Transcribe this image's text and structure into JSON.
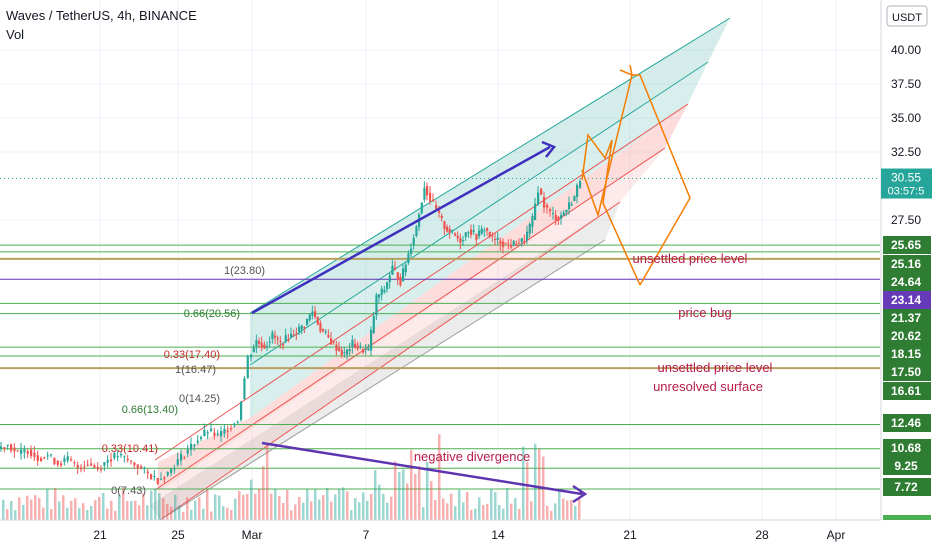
{
  "header": {
    "symbol_line": "Waves / TetherUS, 4h, BINANCE",
    "indicator": "Vol"
  },
  "price_axis": {
    "currency": "USDT",
    "ticks": [
      "40.00",
      "37.50",
      "35.00",
      "32.50",
      "27.50"
    ],
    "current_price": "30.55",
    "countdown": "03:57:5"
  },
  "level_labels": [
    {
      "text": "25.65",
      "color": "#2e7d32"
    },
    {
      "text": "25.16",
      "color": "#2e7d32"
    },
    {
      "text": "24.64",
      "color": "#2e7d32"
    },
    {
      "text": "23.14",
      "color": "#673ab7"
    },
    {
      "text": "21.37",
      "color": "#2e7d32"
    },
    {
      "text": "20.62",
      "color": "#2e7d32"
    },
    {
      "text": "18.15",
      "color": "#2e7d32"
    },
    {
      "text": "17.50",
      "color": "#2e7d32"
    },
    {
      "text": "16.61",
      "color": "#2e7d32"
    },
    {
      "text": "12.46",
      "color": "#2e7d32"
    },
    {
      "text": "10.68",
      "color": "#2e7d32"
    },
    {
      "text": "9.25",
      "color": "#2e7d32"
    },
    {
      "text": "7.72",
      "color": "#2e7d32"
    }
  ],
  "time_axis": [
    "21",
    "25",
    "Mar",
    "7",
    "14",
    "21",
    "28",
    "Apr"
  ],
  "fib_labels": [
    "1(23.80)",
    "0.66(20.56)",
    "0.33(17.40)",
    "1(16.47)",
    "0(14.25)",
    "0.66(13.40)",
    "0.33(10.41)",
    "0(7.43)"
  ],
  "annotations": [
    "unsettled price level",
    "price bug",
    "unsettled price level",
    "unresolved surface",
    "negative divergence"
  ],
  "colors": {
    "up": "#26a69a",
    "down": "#ef5350",
    "level": "#4caf50",
    "purple": "#5e35b1",
    "orange": "#f57c00",
    "annot": "#b71c4a"
  },
  "chart_data": {
    "type": "candlestick",
    "title": "Waves / TetherUS, 4h, BINANCE",
    "ylim": [
      5.5,
      42.5
    ],
    "y_ticks": [
      27.5,
      32.5,
      35.0,
      37.5,
      40.0
    ],
    "horizontal_levels": [
      25.65,
      25.16,
      24.64,
      23.14,
      21.37,
      20.62,
      18.15,
      17.5,
      16.61,
      12.46,
      10.68,
      9.25,
      7.72
    ],
    "current_price": 30.55,
    "close_path": [
      [
        0,
        10.7
      ],
      [
        10,
        11.0
      ],
      [
        20,
        10.3
      ],
      [
        30,
        10.6
      ],
      [
        40,
        10.0
      ],
      [
        50,
        10.2
      ],
      [
        60,
        9.6
      ],
      [
        70,
        9.9
      ],
      [
        80,
        9.3
      ],
      [
        90,
        9.6
      ],
      [
        100,
        9.2
      ],
      [
        110,
        9.9
      ],
      [
        120,
        10.2
      ],
      [
        130,
        9.8
      ],
      [
        140,
        9.4
      ],
      [
        150,
        8.8
      ],
      [
        160,
        8.4
      ],
      [
        170,
        8.9
      ],
      [
        180,
        9.8
      ],
      [
        190,
        10.6
      ],
      [
        200,
        11.4
      ],
      [
        210,
        12.0
      ],
      [
        220,
        11.6
      ],
      [
        230,
        12.2
      ],
      [
        240,
        12.8
      ],
      [
        250,
        17.4
      ],
      [
        258,
        18.6
      ],
      [
        266,
        18.2
      ],
      [
        274,
        19.0
      ],
      [
        282,
        18.4
      ],
      [
        290,
        18.9
      ],
      [
        298,
        19.3
      ],
      [
        306,
        19.8
      ],
      [
        314,
        20.8
      ],
      [
        322,
        19.5
      ],
      [
        330,
        18.8
      ],
      [
        338,
        18.1
      ],
      [
        346,
        17.6
      ],
      [
        354,
        18.4
      ],
      [
        362,
        18.0
      ],
      [
        370,
        17.9
      ],
      [
        378,
        21.8
      ],
      [
        386,
        22.4
      ],
      [
        394,
        24.0
      ],
      [
        402,
        23.0
      ],
      [
        410,
        25.0
      ],
      [
        418,
        27.0
      ],
      [
        426,
        30.0
      ],
      [
        432,
        29.0
      ],
      [
        438,
        28.2
      ],
      [
        446,
        27.0
      ],
      [
        454,
        26.5
      ],
      [
        462,
        26.0
      ],
      [
        470,
        26.8
      ],
      [
        478,
        26.3
      ],
      [
        486,
        26.9
      ],
      [
        494,
        26.1
      ],
      [
        502,
        25.9
      ],
      [
        510,
        25.6
      ],
      [
        518,
        25.8
      ],
      [
        526,
        26.0
      ],
      [
        534,
        27.5
      ],
      [
        540,
        29.8
      ],
      [
        546,
        28.6
      ],
      [
        552,
        28.0
      ],
      [
        560,
        27.6
      ],
      [
        568,
        28.3
      ],
      [
        576,
        29.2
      ],
      [
        582,
        30.55
      ]
    ],
    "volume_note": "volume bars along the bottom, larger around Mar 1 and Mar 7-10"
  }
}
